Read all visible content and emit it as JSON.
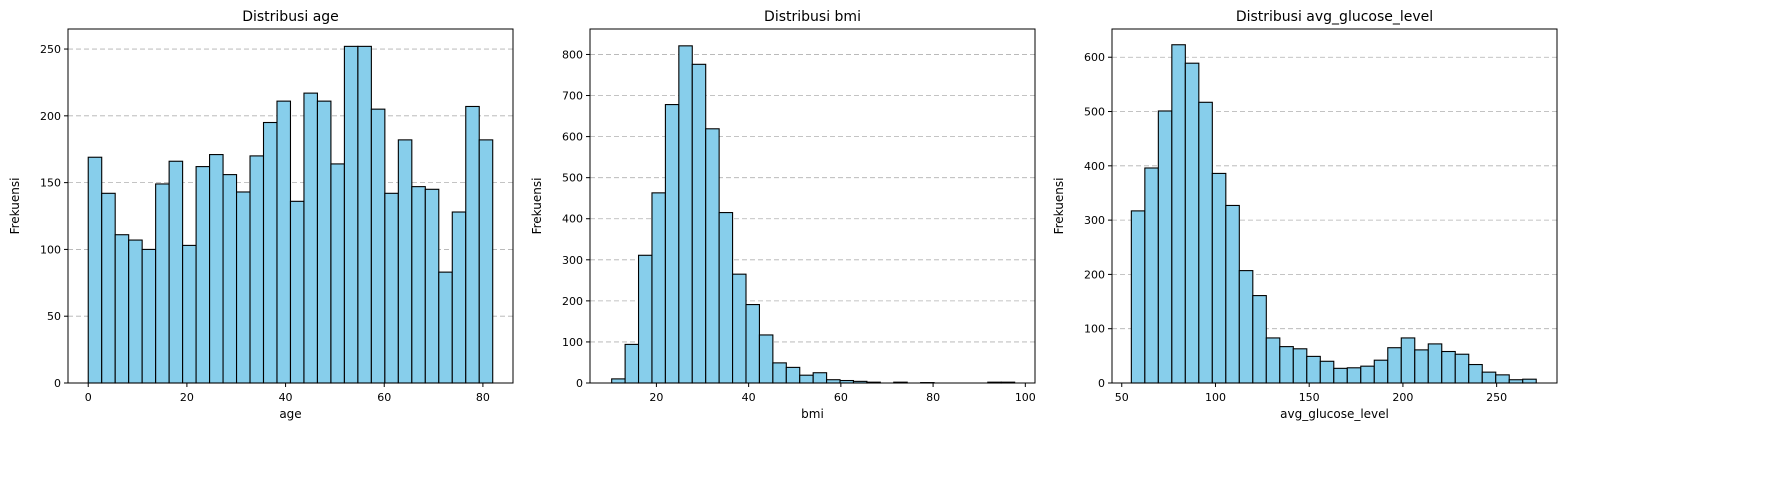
{
  "chart_data": [
    {
      "type": "bar",
      "title": "Distribusi age",
      "xlabel": "age",
      "ylabel": "Frekuensi",
      "xlim": [
        -4.1,
        86.1
      ],
      "ylim": [
        0,
        265
      ],
      "xticks": [
        0,
        20,
        40,
        60,
        80
      ],
      "yticks": [
        0,
        50,
        100,
        150,
        200,
        250
      ],
      "grid_y": true,
      "bin_start": 0,
      "bin_width": 2.733,
      "values": [
        169,
        142,
        111,
        107,
        100,
        149,
        166,
        103,
        162,
        171,
        156,
        143,
        170,
        195,
        211,
        136,
        217,
        211,
        164,
        252,
        252,
        205,
        142,
        182,
        147,
        145,
        83,
        128,
        207,
        182
      ]
    },
    {
      "type": "bar",
      "title": "Distribusi bmi",
      "xlabel": "bmi",
      "ylabel": "Frekuensi",
      "xlim": [
        5.6,
        102.1
      ],
      "ylim": [
        0,
        862
      ],
      "xticks": [
        20,
        40,
        60,
        80,
        100
      ],
      "yticks": [
        0,
        100,
        200,
        300,
        400,
        500,
        600,
        700,
        800
      ],
      "grid_y": true,
      "bin_start": 10.3,
      "bin_width": 2.913,
      "values": [
        10,
        94,
        311,
        463,
        678,
        821,
        776,
        619,
        415,
        265,
        191,
        117,
        49,
        38,
        19,
        25,
        8,
        6,
        4,
        2,
        0,
        2,
        0,
        1,
        0,
        0,
        0,
        0,
        2,
        2
      ]
    },
    {
      "type": "bar",
      "title": "Distribusi avg_glucose_level",
      "xlabel": "avg_glucose_level",
      "ylabel": "Frekuensi",
      "xlim": [
        44.8,
        282.2
      ],
      "ylim": [
        0,
        652
      ],
      "xticks": [
        50,
        100,
        150,
        200,
        250
      ],
      "yticks": [
        0,
        100,
        200,
        300,
        400,
        500,
        600
      ],
      "grid_y": true,
      "bin_start": 55.12,
      "bin_width": 7.2,
      "values": [
        317,
        396,
        501,
        623,
        589,
        517,
        386,
        327,
        207,
        161,
        83,
        67,
        63,
        49,
        40,
        27,
        28,
        31,
        42,
        65,
        83,
        61,
        72,
        58,
        53,
        34,
        20,
        15,
        6,
        7
      ]
    }
  ]
}
